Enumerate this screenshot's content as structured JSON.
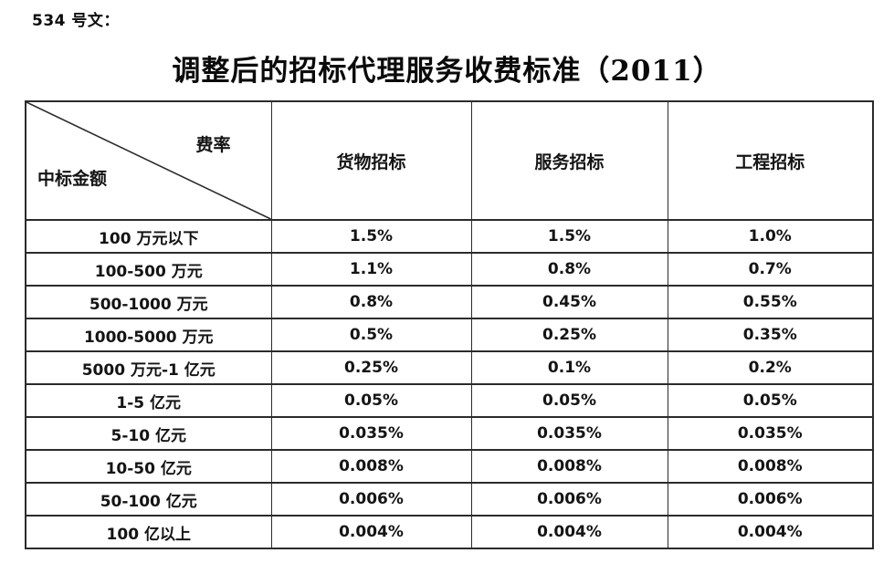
{
  "document": {
    "doc_number_label": "534 号文：",
    "title": "调整后的招标代理服务收费标准（2011）"
  },
  "table": {
    "corner": {
      "axis_top_right": "费率",
      "axis_bottom_left": "中标金额"
    },
    "column_headers": [
      "货物招标",
      "服务招标",
      "工程招标"
    ],
    "rows": [
      {
        "amount": "100 万元以下",
        "values": [
          "1.5%",
          "1.5%",
          "1.0%"
        ]
      },
      {
        "amount": "100-500 万元",
        "values": [
          "1.1%",
          "0.8%",
          "0.7%"
        ]
      },
      {
        "amount": "500-1000 万元",
        "values": [
          "0.8%",
          "0.45%",
          "0.55%"
        ]
      },
      {
        "amount": "1000-5000 万元",
        "values": [
          "0.5%",
          "0.25%",
          "0.35%"
        ]
      },
      {
        "amount": "5000 万元-1 亿元",
        "values": [
          "0.25%",
          "0.1%",
          "0.2%"
        ]
      },
      {
        "amount": "1-5 亿元",
        "values": [
          "0.05%",
          "0.05%",
          "0.05%"
        ]
      },
      {
        "amount": "5-10 亿元",
        "values": [
          "0.035%",
          "0.035%",
          "0.035%"
        ]
      },
      {
        "amount": "10-50 亿元",
        "values": [
          "0.008%",
          "0.008%",
          "0.008%"
        ]
      },
      {
        "amount": "50-100 亿元",
        "values": [
          "0.006%",
          "0.006%",
          "0.006%"
        ]
      },
      {
        "amount": "100 亿以上",
        "values": [
          "0.004%",
          "0.004%",
          "0.004%"
        ]
      }
    ]
  },
  "colors": {
    "background": "#ffffff",
    "text": "#141414",
    "border": "#2b2b2b"
  }
}
